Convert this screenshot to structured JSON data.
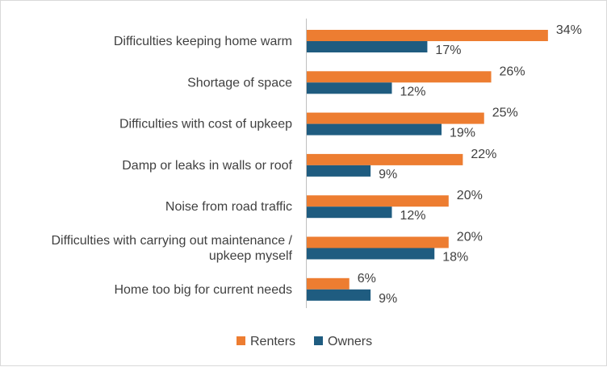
{
  "chart_data": {
    "type": "bar",
    "orientation": "horizontal",
    "categories": [
      [
        "Difficulties keeping home warm"
      ],
      [
        "Shortage of space"
      ],
      [
        "Difficulties with cost of upkeep"
      ],
      [
        "Damp or leaks in walls or roof"
      ],
      [
        "Noise from road traffic"
      ],
      [
        "Difficulties with carrying out maintenance /",
        "upkeep myself"
      ],
      [
        "Home too big for current needs"
      ]
    ],
    "series": [
      {
        "name": "Renters",
        "color": "#ED7D31",
        "values": [
          34,
          26,
          25,
          22,
          20,
          20,
          6
        ],
        "labels": [
          "34%",
          "26%",
          "25%",
          "22%",
          "20%",
          "20%",
          "6%"
        ]
      },
      {
        "name": "Owners",
        "color": "#1F5C80",
        "values": [
          17,
          12,
          19,
          9,
          12,
          18,
          9
        ],
        "labels": [
          "17%",
          "12%",
          "19%",
          "9%",
          "12%",
          "18%",
          "9%"
        ]
      }
    ],
    "value_unit": "%",
    "xlim": [
      0,
      34
    ],
    "grid": false,
    "legend": "bottom",
    "title": "",
    "xlabel": "",
    "ylabel": ""
  }
}
